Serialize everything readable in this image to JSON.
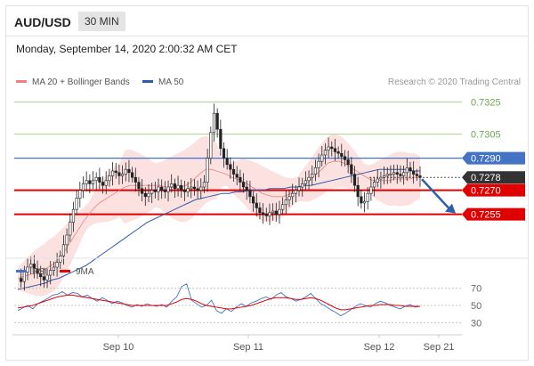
{
  "header": {
    "symbol": "AUD/USD",
    "timeframe": "30 MIN"
  },
  "datetime": "Monday, September 14, 2020 2:00:32 AM CET",
  "legend": {
    "bollinger": "MA 20 + Bollinger Bands",
    "ma50": "MA 50",
    "rsi": "RSI",
    "rsi_ma": "9MA"
  },
  "credit": "Research © 2020 Trading Central",
  "colors": {
    "resistance": "#a8d08d",
    "pivot": "#4472c4",
    "support": "#e00000",
    "bollinger_fill": "#fbdcdc",
    "ma50": "#2f5aa8",
    "ma20": "#e86a6a",
    "candle": "#222222",
    "current_price_bg": "#333333",
    "arrow": "#2e5fa8"
  },
  "chart_data": [
    {
      "type": "candlestick",
      "ylim": [
        0.7232,
        0.7332
      ],
      "x_ticks": [
        "Sep 10",
        "Sep 11",
        "Sep 12",
        "Sep 21"
      ],
      "levels": [
        {
          "value": 0.7325,
          "label": "0.7325",
          "kind": "resistance"
        },
        {
          "value": 0.7305,
          "label": "0.7305",
          "kind": "resistance"
        },
        {
          "value": 0.729,
          "label": "0.7290",
          "kind": "pivot"
        },
        {
          "value": 0.7278,
          "label": "0.7278",
          "kind": "current"
        },
        {
          "value": 0.727,
          "label": "0.7270",
          "kind": "support"
        },
        {
          "value": 0.7255,
          "label": "0.7255",
          "kind": "support"
        }
      ],
      "forecast": {
        "from": 0.7278,
        "to": 0.7255,
        "direction": "down"
      },
      "price_path": [
        0.7215,
        0.7213,
        0.7219,
        0.7222,
        0.7224,
        0.7221,
        0.7218,
        0.7216,
        0.7214,
        0.7217,
        0.722,
        0.7222,
        0.7225,
        0.7229,
        0.7236,
        0.7242,
        0.725,
        0.7258,
        0.7265,
        0.727,
        0.7274,
        0.7276,
        0.7274,
        0.7276,
        0.7278,
        0.7275,
        0.7273,
        0.7276,
        0.7279,
        0.7282,
        0.7281,
        0.7279,
        0.728,
        0.7283,
        0.7281,
        0.7278,
        0.7275,
        0.7271,
        0.7268,
        0.7266,
        0.7268,
        0.727,
        0.7269,
        0.7272,
        0.727,
        0.7269,
        0.7272,
        0.7274,
        0.7271,
        0.7273,
        0.727,
        0.7269,
        0.7271,
        0.7272,
        0.7271,
        0.727,
        0.7272,
        0.7275,
        0.729,
        0.7306,
        0.7318,
        0.7308,
        0.7296,
        0.729,
        0.7286,
        0.7283,
        0.728,
        0.7278,
        0.7275,
        0.7272,
        0.727,
        0.7266,
        0.7262,
        0.7259,
        0.7256,
        0.7255,
        0.7254,
        0.7256,
        0.7257,
        0.7255,
        0.7258,
        0.7261,
        0.7264,
        0.7266,
        0.7268,
        0.727,
        0.7272,
        0.7274,
        0.7276,
        0.7278,
        0.728,
        0.7284,
        0.7288,
        0.7292,
        0.7295,
        0.7297,
        0.7296,
        0.7294,
        0.7293,
        0.7291,
        0.7289,
        0.7286,
        0.728,
        0.7273,
        0.7266,
        0.7262,
        0.7263,
        0.7268,
        0.7272,
        0.7275,
        0.7277,
        0.7278,
        0.7279,
        0.728,
        0.728,
        0.7281,
        0.728,
        0.7279,
        0.7281,
        0.7284,
        0.7282,
        0.728,
        0.7279,
        0.7278
      ],
      "ma20": [
        0.7215,
        0.7216,
        0.7217,
        0.7218,
        0.7219,
        0.722,
        0.7222,
        0.7224,
        0.7227,
        0.7231,
        0.7236,
        0.7241,
        0.7246,
        0.7251,
        0.7255,
        0.7259,
        0.7262,
        0.7264,
        0.7266,
        0.7268,
        0.727,
        0.7272,
        0.7273,
        0.7273,
        0.7273,
        0.7273,
        0.7273,
        0.7273,
        0.7273,
        0.7272,
        0.7272,
        0.7272,
        0.7272,
        0.7273,
        0.7275,
        0.7278,
        0.7281,
        0.7283,
        0.7283,
        0.7282,
        0.7281,
        0.728,
        0.7278,
        0.7277,
        0.7276,
        0.7274,
        0.7272,
        0.727,
        0.7268,
        0.7267,
        0.7266,
        0.7266,
        0.7266,
        0.7267,
        0.7269,
        0.7271,
        0.7273,
        0.7275,
        0.7278,
        0.7281,
        0.7284,
        0.7287,
        0.7288,
        0.7288,
        0.7287,
        0.7285,
        0.7283,
        0.7281,
        0.7279,
        0.7277,
        0.7276,
        0.7276,
        0.7276,
        0.7276,
        0.7277,
        0.7277,
        0.7277,
        0.7277,
        0.7278,
        0.7278
      ],
      "ma50": [
        0.7208,
        0.7209,
        0.721,
        0.7211,
        0.7212,
        0.7214,
        0.7215,
        0.7217,
        0.7219,
        0.7221,
        0.7223,
        0.7226,
        0.7229,
        0.7232,
        0.7235,
        0.7238,
        0.7241,
        0.7244,
        0.7247,
        0.725,
        0.7252,
        0.7254,
        0.7256,
        0.7258,
        0.726,
        0.7262,
        0.7264,
        0.7265,
        0.7266,
        0.7267,
        0.7268,
        0.7268,
        0.7269,
        0.7269,
        0.727,
        0.727,
        0.727,
        0.7271,
        0.7271,
        0.7271,
        0.7272,
        0.7272,
        0.7273,
        0.7273,
        0.7274,
        0.7275,
        0.7276,
        0.7277,
        0.7278,
        0.7279,
        0.728,
        0.7281,
        0.7282,
        0.7283,
        0.7283,
        0.7283,
        0.7283,
        0.7283,
        0.7282,
        0.7282
      ]
    },
    {
      "type": "line",
      "ylim": [
        20,
        80
      ],
      "y_ticks": [
        70,
        50,
        30
      ],
      "rsi": [
        44,
        47,
        50,
        46,
        52,
        55,
        58,
        62,
        63,
        66,
        62,
        65,
        64,
        60,
        62,
        58,
        55,
        59,
        56,
        52,
        55,
        53,
        50,
        48,
        51,
        49,
        52,
        50,
        49,
        51,
        48,
        55,
        60,
        72,
        75,
        56,
        52,
        48,
        50,
        56,
        44,
        41,
        46,
        43,
        48,
        52,
        49,
        53,
        55,
        58,
        60,
        57,
        62,
        65,
        60,
        58,
        55,
        57,
        60,
        64,
        58,
        52,
        49,
        45,
        42,
        38,
        41,
        45,
        49,
        52,
        50,
        48,
        52,
        55,
        53,
        50,
        48,
        46,
        49,
        51,
        48,
        49
      ],
      "rsi_ma": [
        47,
        48,
        49,
        50,
        52,
        54,
        56,
        58,
        60,
        61,
        62,
        62,
        61,
        60,
        59,
        58,
        57,
        56,
        55,
        54,
        53,
        52,
        51,
        50,
        50,
        50,
        50,
        50,
        50,
        50,
        50,
        52,
        54,
        57,
        58,
        57,
        55,
        52,
        50,
        49,
        48,
        47,
        46,
        46,
        47,
        48,
        49,
        50,
        52,
        54,
        56,
        58,
        59,
        59,
        59,
        58,
        57,
        57,
        58,
        59,
        58,
        56,
        53,
        50,
        47,
        45,
        45,
        46,
        47,
        48,
        49,
        50,
        50,
        51,
        51,
        51,
        50,
        50,
        49,
        49,
        49,
        49
      ]
    }
  ]
}
